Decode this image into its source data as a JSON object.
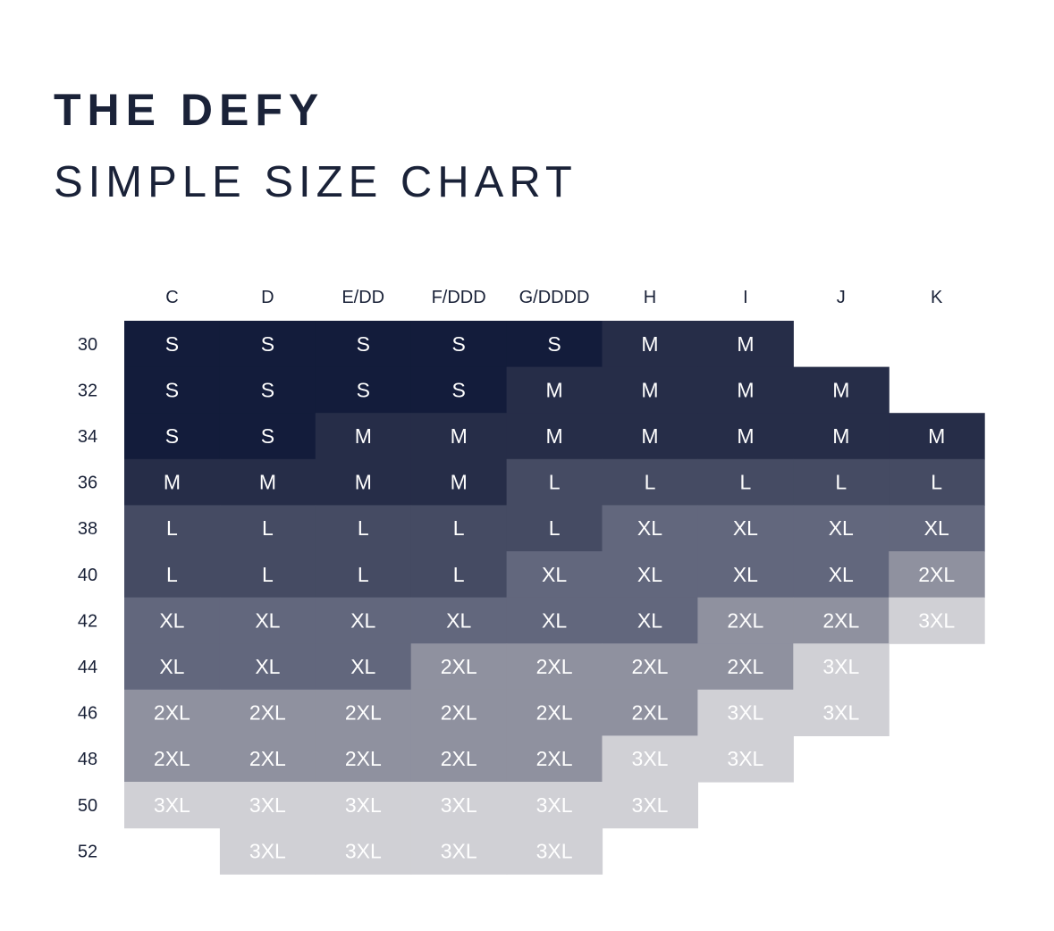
{
  "header": {
    "title": "THE DEFY",
    "subtitle": "SIMPLE SIZE CHART"
  },
  "chart_data": {
    "type": "table",
    "columns": [
      "C",
      "D",
      "E/DD",
      "F/DDD",
      "G/DDDD",
      "H",
      "I",
      "J",
      "K"
    ],
    "rows": [
      "30",
      "32",
      "34",
      "36",
      "38",
      "40",
      "42",
      "44",
      "46",
      "48",
      "50",
      "52"
    ],
    "cells": [
      [
        "S",
        "S",
        "S",
        "S",
        "S",
        "M",
        "M",
        "",
        ""
      ],
      [
        "S",
        "S",
        "S",
        "S",
        "M",
        "M",
        "M",
        "M",
        ""
      ],
      [
        "S",
        "S",
        "M",
        "M",
        "M",
        "M",
        "M",
        "M",
        "M"
      ],
      [
        "M",
        "M",
        "M",
        "M",
        "L",
        "L",
        "L",
        "L",
        "L"
      ],
      [
        "L",
        "L",
        "L",
        "L",
        "L",
        "XL",
        "XL",
        "XL",
        "XL"
      ],
      [
        "L",
        "L",
        "L",
        "L",
        "XL",
        "XL",
        "XL",
        "XL",
        "2XL"
      ],
      [
        "XL",
        "XL",
        "XL",
        "XL",
        "XL",
        "XL",
        "2XL",
        "2XL",
        "3XL"
      ],
      [
        "XL",
        "XL",
        "XL",
        "2XL",
        "2XL",
        "2XL",
        "2XL",
        "3XL",
        ""
      ],
      [
        "2XL",
        "2XL",
        "2XL",
        "2XL",
        "2XL",
        "2XL",
        "3XL",
        "3XL",
        ""
      ],
      [
        "2XL",
        "2XL",
        "2XL",
        "2XL",
        "2XL",
        "3XL",
        "3XL",
        "",
        ""
      ],
      [
        "3XL",
        "3XL",
        "3XL",
        "3XL",
        "3XL",
        "3XL",
        "",
        "",
        ""
      ],
      [
        "",
        "3XL",
        "3XL",
        "3XL",
        "3XL",
        "",
        "",
        "",
        ""
      ]
    ],
    "size_colors": {
      "S": "#131c3b",
      "M": "#262d48",
      "L": "#454b63",
      "XL": "#62677d",
      "2XL": "#8f919f",
      "3XL": "#d0d0d5"
    },
    "text_color": "#ffffff",
    "label_color": "#1a2238"
  }
}
